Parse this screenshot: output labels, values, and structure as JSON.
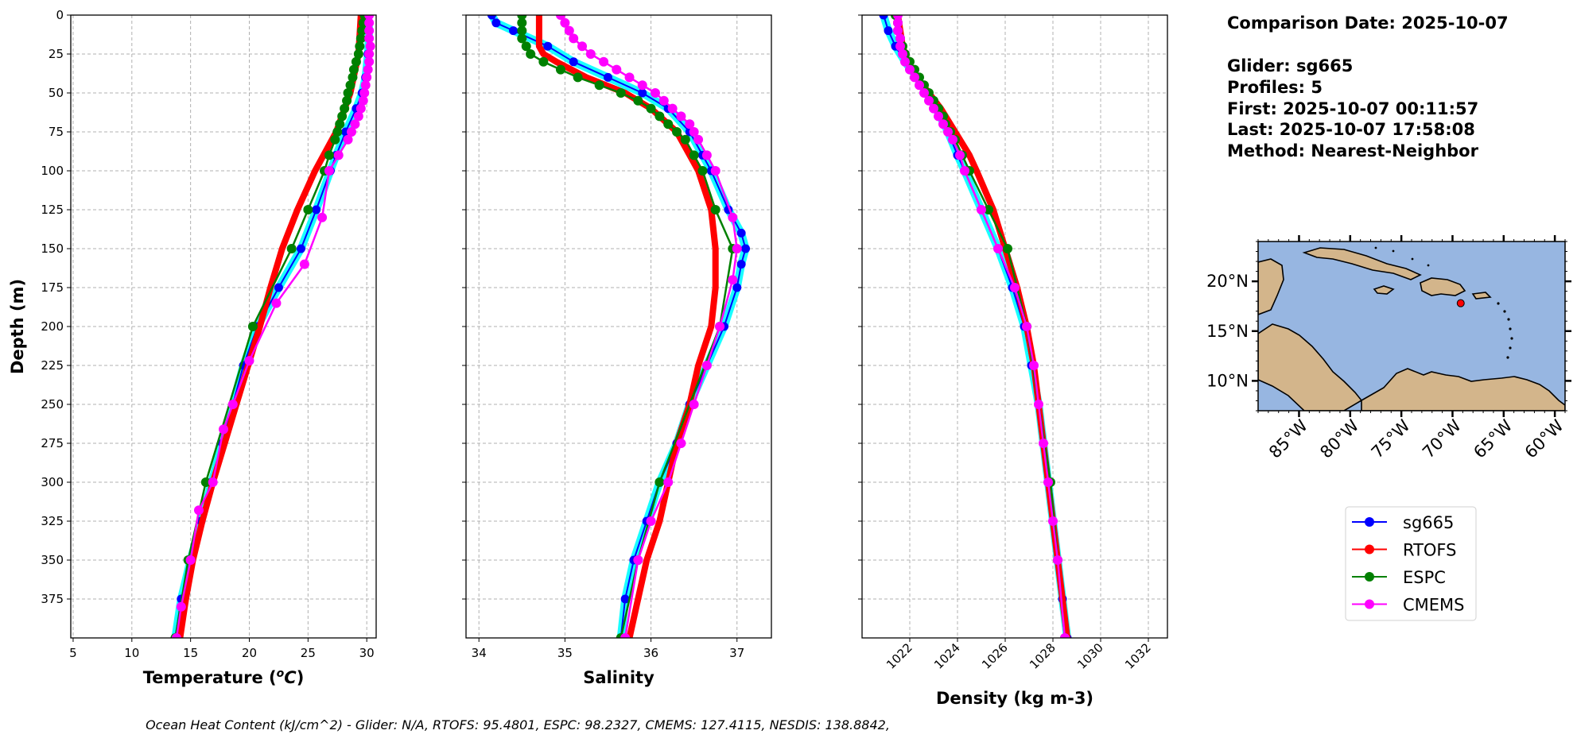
{
  "colors": {
    "sg665": "#0000ff",
    "sg665_halo": "#00ffff",
    "RTOFS": "#ff0000",
    "ESPC": "#008000",
    "CMEMS": "#ff00ff",
    "ocean": "#97b6e1",
    "land": "#d3b58b"
  },
  "info": {
    "date_line": "Comparison Date: 2025-10-07",
    "glider_line": "Glider: sg665",
    "profiles_line": "Profiles: 5",
    "first_line": "First: 2025-10-07 00:11:57",
    "last_line": "Last: 2025-10-07 17:58:08",
    "method_line": "Method: Nearest-Neighbor"
  },
  "footer": "Ocean Heat Content (kJ/cm^2) - Glider: N/A,  RTOFS: 95.4801,  ESPC: 98.2327,  CMEMS: 127.4115,  NESDIS: 138.8842,",
  "legend": [
    {
      "name": "sg665",
      "color_key": "sg665"
    },
    {
      "name": "RTOFS",
      "color_key": "RTOFS"
    },
    {
      "name": "ESPC",
      "color_key": "ESPC"
    },
    {
      "name": "CMEMS",
      "color_key": "CMEMS"
    }
  ],
  "map": {
    "lon_range": [
      -89,
      -59
    ],
    "lat_range": [
      7,
      24
    ],
    "lon_ticks": [
      -85,
      -80,
      -75,
      -70,
      -65,
      -60
    ],
    "lon_tick_labels": [
      "85°W",
      "80°W",
      "75°W",
      "70°W",
      "65°W",
      "60°W"
    ],
    "lat_ticks": [
      10,
      15,
      20
    ],
    "lat_tick_labels": [
      "10°N",
      "15°N",
      "20°N"
    ],
    "glider_position": {
      "lon": -69.2,
      "lat": 17.8
    }
  },
  "chart_data": [
    {
      "type": "line",
      "xlabel": "Temperature (°C)",
      "ylabel": "Depth (m)",
      "xlim": [
        4.8,
        30.8
      ],
      "ylim": [
        400,
        0
      ],
      "xticks": [
        5,
        10,
        15,
        20,
        25,
        30
      ],
      "yticks": [
        0,
        25,
        50,
        75,
        100,
        125,
        150,
        175,
        200,
        225,
        250,
        275,
        300,
        325,
        350,
        375
      ],
      "grid": true,
      "series": [
        {
          "name": "sg665",
          "depth": [
            0,
            10,
            25,
            40,
            50,
            60,
            75,
            90,
            100,
            125,
            150,
            175,
            200,
            225,
            250,
            275,
            300,
            325,
            350,
            375,
            400
          ],
          "values": [
            30.1,
            30.2,
            30.1,
            29.9,
            29.6,
            29.1,
            28.2,
            27.4,
            26.9,
            25.7,
            24.4,
            22.5,
            20.7,
            19.5,
            18.6,
            17.7,
            16.8,
            15.9,
            15.0,
            14.2,
            13.7
          ]
        },
        {
          "name": "RTOFS",
          "depth": [
            0,
            25,
            50,
            75,
            100,
            125,
            150,
            175,
            200,
            225,
            250,
            275,
            300,
            325,
            350,
            375,
            400
          ],
          "values": [
            29.5,
            29.3,
            28.6,
            27.4,
            25.6,
            24.1,
            22.8,
            21.8,
            20.9,
            19.9,
            18.9,
            17.9,
            16.9,
            16.0,
            15.2,
            14.6,
            14.1
          ]
        },
        {
          "name": "ESPC",
          "depth": [
            0,
            5,
            10,
            15,
            20,
            25,
            30,
            35,
            40,
            45,
            50,
            55,
            60,
            65,
            70,
            75,
            80,
            90,
            100,
            125,
            150,
            200,
            300,
            350,
            400
          ],
          "values": [
            29.8,
            29.7,
            29.6,
            29.5,
            29.4,
            29.3,
            29.1,
            28.9,
            28.8,
            28.6,
            28.4,
            28.3,
            28.1,
            27.9,
            27.7,
            27.5,
            27.3,
            26.8,
            26.4,
            25.0,
            23.6,
            20.3,
            16.3,
            14.8,
            13.7
          ]
        },
        {
          "name": "CMEMS",
          "depth": [
            0,
            5,
            10,
            15,
            20,
            25,
            30,
            35,
            40,
            45,
            50,
            55,
            60,
            65,
            70,
            75,
            80,
            90,
            100,
            130,
            160,
            185,
            222,
            250,
            266,
            300,
            318,
            350,
            380,
            400
          ],
          "values": [
            30.2,
            30.2,
            30.2,
            30.2,
            30.3,
            30.2,
            30.2,
            30.1,
            30.0,
            29.9,
            29.8,
            29.7,
            29.5,
            29.3,
            29.0,
            28.7,
            28.4,
            27.6,
            26.8,
            26.2,
            24.7,
            22.3,
            20.0,
            18.6,
            17.8,
            16.9,
            15.7,
            15.0,
            14.2,
            13.8
          ]
        }
      ]
    },
    {
      "type": "line",
      "xlabel": "Salinity",
      "xlim": [
        33.85,
        37.4
      ],
      "ylim": [
        400,
        0
      ],
      "xticks": [
        34,
        35,
        36,
        37
      ],
      "yticks": [
        0,
        25,
        50,
        75,
        100,
        125,
        150,
        175,
        200,
        225,
        250,
        275,
        300,
        325,
        350,
        375
      ],
      "grid": true,
      "series": [
        {
          "name": "sg665",
          "depth": [
            0,
            5,
            10,
            20,
            30,
            40,
            50,
            60,
            75,
            90,
            100,
            125,
            140,
            150,
            160,
            175,
            200,
            225,
            250,
            275,
            300,
            325,
            350,
            375,
            400
          ],
          "values": [
            34.15,
            34.2,
            34.4,
            34.8,
            35.1,
            35.5,
            35.9,
            36.2,
            36.45,
            36.6,
            36.7,
            36.9,
            37.05,
            37.1,
            37.05,
            37.0,
            36.85,
            36.65,
            36.45,
            36.3,
            36.1,
            35.95,
            35.8,
            35.7,
            35.65
          ]
        },
        {
          "name": "RTOFS",
          "depth": [
            0,
            10,
            20,
            25,
            30,
            40,
            50,
            60,
            75,
            100,
            125,
            150,
            175,
            200,
            225,
            250,
            275,
            300,
            325,
            350,
            375,
            400
          ],
          "values": [
            34.7,
            34.7,
            34.7,
            34.75,
            34.9,
            35.25,
            35.7,
            36.0,
            36.3,
            36.55,
            36.7,
            36.75,
            36.75,
            36.7,
            36.55,
            36.45,
            36.3,
            36.2,
            36.1,
            35.95,
            35.85,
            35.75
          ]
        },
        {
          "name": "ESPC",
          "depth": [
            0,
            5,
            10,
            15,
            20,
            25,
            30,
            35,
            40,
            45,
            50,
            55,
            60,
            65,
            70,
            75,
            80,
            90,
            100,
            125,
            150,
            200,
            300,
            350,
            400
          ],
          "values": [
            34.5,
            34.5,
            34.5,
            34.5,
            34.55,
            34.6,
            34.75,
            34.95,
            35.15,
            35.4,
            35.65,
            35.85,
            36.0,
            36.1,
            36.2,
            36.3,
            36.4,
            36.5,
            36.6,
            36.75,
            36.95,
            36.8,
            36.1,
            35.85,
            35.65
          ]
        },
        {
          "name": "CMEMS",
          "depth": [
            0,
            5,
            10,
            15,
            20,
            25,
            30,
            35,
            40,
            45,
            50,
            55,
            60,
            65,
            70,
            75,
            80,
            90,
            100,
            130,
            150,
            170,
            200,
            225,
            250,
            275,
            300,
            325,
            350,
            400
          ],
          "values": [
            34.95,
            35.0,
            35.05,
            35.1,
            35.2,
            35.3,
            35.45,
            35.6,
            35.75,
            35.9,
            36.05,
            36.15,
            36.25,
            36.35,
            36.45,
            36.5,
            36.55,
            36.65,
            36.75,
            36.95,
            37.0,
            36.95,
            36.8,
            36.65,
            36.5,
            36.35,
            36.2,
            36.0,
            35.85,
            35.7
          ]
        }
      ]
    },
    {
      "type": "line",
      "xlabel": "Density (kg m-3)",
      "xlim": [
        1020.0,
        1032.8
      ],
      "ylim": [
        400,
        0
      ],
      "xticks": [
        1022,
        1024,
        1026,
        1028,
        1030,
        1032
      ],
      "yticks": [
        0,
        25,
        50,
        75,
        100,
        125,
        150,
        175,
        200,
        225,
        250,
        275,
        300,
        325,
        350,
        375
      ],
      "grid": true,
      "series": [
        {
          "name": "sg665",
          "depth": [
            0,
            10,
            20,
            30,
            40,
            50,
            60,
            75,
            90,
            100,
            125,
            150,
            175,
            200,
            225,
            250,
            275,
            300,
            325,
            350,
            375,
            400
          ],
          "values": [
            1020.9,
            1021.1,
            1021.4,
            1021.8,
            1022.3,
            1022.7,
            1023.1,
            1023.6,
            1024.0,
            1024.3,
            1025.0,
            1025.7,
            1026.3,
            1026.8,
            1027.1,
            1027.4,
            1027.6,
            1027.8,
            1028.0,
            1028.2,
            1028.4,
            1028.6
          ]
        },
        {
          "name": "RTOFS",
          "depth": [
            0,
            10,
            20,
            30,
            40,
            50,
            60,
            75,
            90,
            100,
            125,
            150,
            175,
            200,
            225,
            250,
            275,
            300,
            325,
            350,
            375,
            400
          ],
          "values": [
            1021.5,
            1021.6,
            1021.7,
            1021.9,
            1022.3,
            1022.8,
            1023.3,
            1023.9,
            1024.5,
            1024.8,
            1025.5,
            1026.0,
            1026.5,
            1026.9,
            1027.2,
            1027.4,
            1027.6,
            1027.8,
            1028.0,
            1028.2,
            1028.4,
            1028.6
          ]
        },
        {
          "name": "ESPC",
          "depth": [
            0,
            5,
            10,
            15,
            20,
            25,
            30,
            35,
            40,
            45,
            50,
            55,
            60,
            65,
            70,
            75,
            80,
            90,
            100,
            125,
            150,
            200,
            300,
            350,
            400
          ],
          "values": [
            1021.4,
            1021.5,
            1021.5,
            1021.6,
            1021.7,
            1021.8,
            1022.0,
            1022.2,
            1022.4,
            1022.6,
            1022.8,
            1023.0,
            1023.2,
            1023.4,
            1023.5,
            1023.7,
            1023.9,
            1024.2,
            1024.5,
            1025.3,
            1026.1,
            1026.9,
            1027.9,
            1028.2,
            1028.5
          ]
        },
        {
          "name": "CMEMS",
          "depth": [
            0,
            5,
            10,
            15,
            20,
            25,
            30,
            35,
            40,
            45,
            50,
            55,
            60,
            65,
            70,
            75,
            80,
            90,
            100,
            125,
            150,
            175,
            200,
            225,
            250,
            275,
            300,
            325,
            350,
            400
          ],
          "values": [
            1021.5,
            1021.5,
            1021.5,
            1021.6,
            1021.6,
            1021.7,
            1021.8,
            1022.0,
            1022.2,
            1022.4,
            1022.6,
            1022.8,
            1023.0,
            1023.2,
            1023.4,
            1023.6,
            1023.8,
            1024.1,
            1024.3,
            1025.0,
            1025.7,
            1026.4,
            1026.9,
            1027.2,
            1027.4,
            1027.6,
            1027.8,
            1028.0,
            1028.2,
            1028.5
          ]
        }
      ]
    }
  ]
}
